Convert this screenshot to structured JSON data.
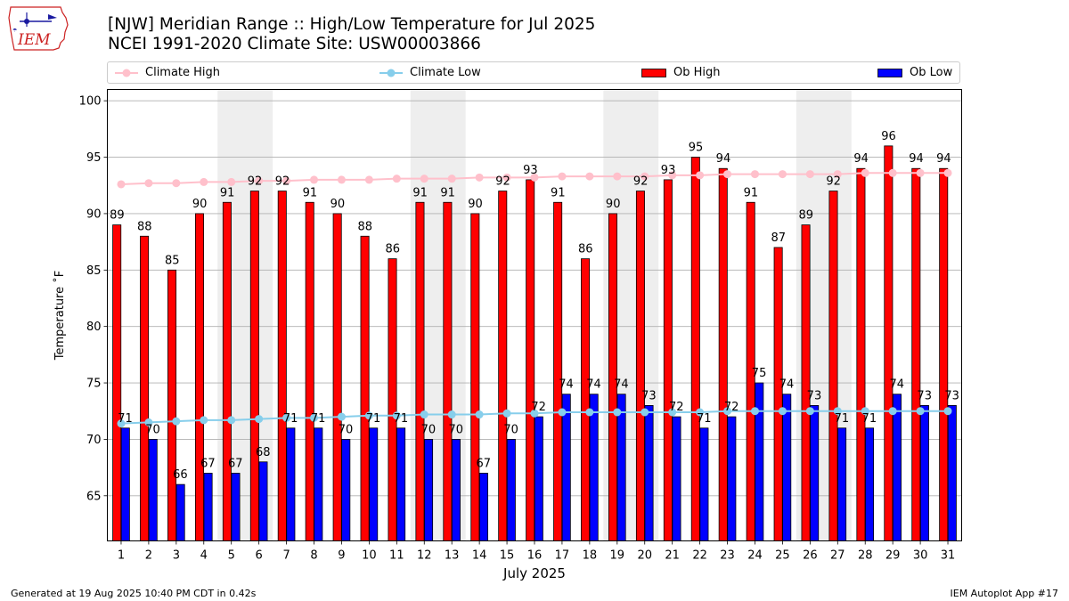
{
  "logo_text": "IEM",
  "title_line1": "[NJW] Meridian Range :: High/Low Temperature for Jul 2025",
  "title_line2": "NCEI 1991-2020 Climate Site: USW00003866",
  "legend": {
    "climate_high": "Climate High",
    "climate_low": "Climate Low",
    "ob_high": "Ob High",
    "ob_low": "Ob Low"
  },
  "colors": {
    "ob_high": "#ff0000",
    "ob_low": "#0000ff",
    "climate_high": "#ffc0cb",
    "climate_low": "#87ceeb",
    "weekend_band": "#eeeeee",
    "grid": "#b0b0b0"
  },
  "footer_left": "Generated at 19 Aug 2025 10:40 PM CDT in 0.42s",
  "footer_right": "IEM Autoplot App #17",
  "chart_data": {
    "type": "bar",
    "title": "[NJW] Meridian Range :: High/Low Temperature for Jul 2025",
    "subtitle": "NCEI 1991-2020 Climate Site: USW00003866",
    "xlabel": "July 2025",
    "ylabel": "Temperature ˚F",
    "ylim": [
      61,
      101
    ],
    "yticks": [
      65,
      70,
      75,
      80,
      85,
      90,
      95,
      100
    ],
    "grid": true,
    "legend_position": "top",
    "categories": [
      "1",
      "2",
      "3",
      "4",
      "5",
      "6",
      "7",
      "8",
      "9",
      "10",
      "11",
      "12",
      "13",
      "14",
      "15",
      "16",
      "17",
      "18",
      "19",
      "20",
      "21",
      "22",
      "23",
      "24",
      "25",
      "26",
      "27",
      "28",
      "29",
      "30",
      "31"
    ],
    "weekend_shading_days": [
      [
        5,
        6
      ],
      [
        12,
        13
      ],
      [
        19,
        20
      ],
      [
        26,
        27
      ]
    ],
    "series": [
      {
        "name": "Ob High",
        "kind": "bar",
        "values": [
          89,
          88,
          85,
          90,
          91,
          92,
          92,
          91,
          90,
          88,
          86,
          91,
          91,
          90,
          92,
          93,
          91,
          86,
          90,
          92,
          93,
          95,
          94,
          91,
          87,
          89,
          92,
          94,
          96,
          94,
          94
        ]
      },
      {
        "name": "Ob Low",
        "kind": "bar",
        "values": [
          71,
          70,
          66,
          67,
          67,
          68,
          71,
          71,
          70,
          71,
          71,
          70,
          70,
          67,
          70,
          72,
          74,
          74,
          74,
          73,
          72,
          71,
          72,
          75,
          74,
          73,
          71,
          71,
          74,
          73,
          73
        ]
      },
      {
        "name": "Climate High",
        "kind": "line",
        "values": [
          92.6,
          92.7,
          92.7,
          92.8,
          92.8,
          92.9,
          92.9,
          93.0,
          93.0,
          93.0,
          93.1,
          93.1,
          93.1,
          93.2,
          93.2,
          93.2,
          93.3,
          93.3,
          93.3,
          93.3,
          93.4,
          93.4,
          93.5,
          93.5,
          93.5,
          93.5,
          93.5,
          93.6,
          93.6,
          93.6,
          93.6
        ]
      },
      {
        "name": "Climate Low",
        "kind": "line",
        "values": [
          71.4,
          71.5,
          71.6,
          71.7,
          71.7,
          71.8,
          71.9,
          71.9,
          72.0,
          72.1,
          72.1,
          72.2,
          72.2,
          72.2,
          72.3,
          72.3,
          72.4,
          72.4,
          72.4,
          72.4,
          72.4,
          72.4,
          72.5,
          72.5,
          72.5,
          72.5,
          72.5,
          72.5,
          72.5,
          72.5,
          72.5
        ]
      }
    ]
  }
}
